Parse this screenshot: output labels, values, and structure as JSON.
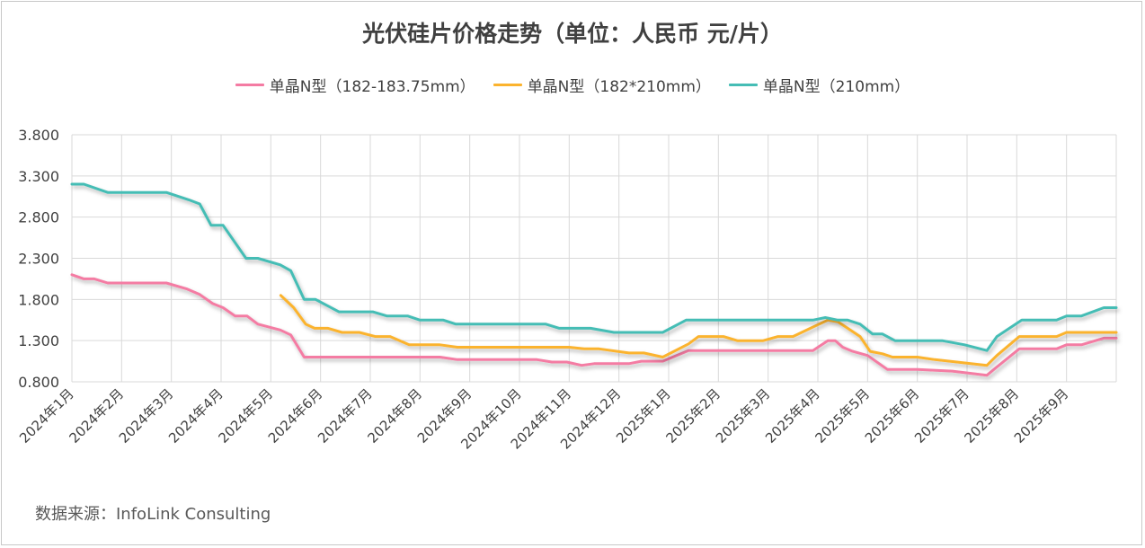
{
  "chart_data": {
    "type": "line",
    "title": "光伏硅片价格走势（单位：人民币 元/片）",
    "xlabel": "",
    "ylabel": "",
    "ylim": [
      0.8,
      3.8
    ],
    "yticks": [
      "0.800",
      "1.300",
      "1.800",
      "2.300",
      "2.800",
      "3.300",
      "3.800"
    ],
    "ytick_values": [
      0.8,
      1.3,
      1.8,
      2.3,
      2.8,
      3.3,
      3.8
    ],
    "xlim": [
      0,
      21
    ],
    "x_unit": "months since 2024年1月",
    "categories": [
      "2024年1月",
      "2024年2月",
      "2024年3月",
      "2024年4月",
      "2024年5月",
      "2024年6月",
      "2024年7月",
      "2024年8月",
      "2024年9月",
      "2024年10月",
      "2024年11月",
      "2024年12月",
      "2025年1月",
      "2025年2月",
      "2025年3月",
      "2025年4月",
      "2025年5月",
      "2025年6月",
      "2025年7月",
      "2025年8月",
      "2025年9月"
    ],
    "grid": true,
    "legend_position": "top-center",
    "series": [
      {
        "name": "单晶N型（182-183.75mm）",
        "color": "#f47ba3",
        "points": [
          [
            0,
            2.1
          ],
          [
            0.24,
            2.05
          ],
          [
            0.45,
            2.05
          ],
          [
            0.72,
            2.0
          ],
          [
            1.9,
            2.0
          ],
          [
            2.3,
            1.93
          ],
          [
            2.57,
            1.86
          ],
          [
            2.83,
            1.75
          ],
          [
            3.04,
            1.7
          ],
          [
            3.28,
            1.6
          ],
          [
            3.52,
            1.6
          ],
          [
            3.74,
            1.5
          ],
          [
            4.19,
            1.43
          ],
          [
            4.4,
            1.37
          ],
          [
            4.67,
            1.1
          ],
          [
            7.4,
            1.1
          ],
          [
            7.75,
            1.07
          ],
          [
            9.35,
            1.07
          ],
          [
            9.65,
            1.04
          ],
          [
            9.95,
            1.04
          ],
          [
            10.25,
            1.0
          ],
          [
            10.5,
            1.02
          ],
          [
            11.2,
            1.02
          ],
          [
            11.45,
            1.05
          ],
          [
            11.88,
            1.05
          ],
          [
            12.4,
            1.18
          ],
          [
            14.9,
            1.18
          ],
          [
            15.2,
            1.3
          ],
          [
            15.35,
            1.3
          ],
          [
            15.5,
            1.22
          ],
          [
            15.7,
            1.17
          ],
          [
            16.0,
            1.12
          ],
          [
            16.4,
            0.95
          ],
          [
            17.0,
            0.95
          ],
          [
            17.7,
            0.93
          ],
          [
            18.1,
            0.9
          ],
          [
            18.4,
            0.88
          ],
          [
            18.6,
            0.98
          ],
          [
            19.05,
            1.2
          ],
          [
            19.8,
            1.2
          ],
          [
            20.0,
            1.25
          ],
          [
            20.3,
            1.25
          ],
          [
            20.75,
            1.33
          ],
          [
            21.0,
            1.33
          ]
        ]
      },
      {
        "name": "单晶N型（182*210mm）",
        "color": "#fbb32e",
        "points": [
          [
            4.2,
            1.85
          ],
          [
            4.46,
            1.7
          ],
          [
            4.7,
            1.5
          ],
          [
            4.88,
            1.45
          ],
          [
            5.15,
            1.45
          ],
          [
            5.43,
            1.4
          ],
          [
            5.78,
            1.4
          ],
          [
            6.1,
            1.35
          ],
          [
            6.4,
            1.35
          ],
          [
            6.78,
            1.25
          ],
          [
            7.4,
            1.25
          ],
          [
            7.75,
            1.22
          ],
          [
            10.0,
            1.22
          ],
          [
            10.3,
            1.2
          ],
          [
            10.6,
            1.2
          ],
          [
            11.2,
            1.15
          ],
          [
            11.5,
            1.15
          ],
          [
            11.88,
            1.1
          ],
          [
            12.4,
            1.26
          ],
          [
            12.6,
            1.35
          ],
          [
            13.1,
            1.35
          ],
          [
            13.38,
            1.3
          ],
          [
            13.9,
            1.3
          ],
          [
            14.2,
            1.35
          ],
          [
            14.5,
            1.35
          ],
          [
            14.85,
            1.45
          ],
          [
            15.2,
            1.55
          ],
          [
            15.4,
            1.53
          ],
          [
            15.6,
            1.45
          ],
          [
            15.85,
            1.35
          ],
          [
            16.05,
            1.17
          ],
          [
            16.3,
            1.14
          ],
          [
            16.5,
            1.1
          ],
          [
            17.0,
            1.1
          ],
          [
            17.35,
            1.07
          ],
          [
            18.4,
            1.0
          ],
          [
            18.6,
            1.12
          ],
          [
            19.05,
            1.35
          ],
          [
            19.8,
            1.35
          ],
          [
            20.0,
            1.4
          ],
          [
            21.0,
            1.4
          ]
        ]
      },
      {
        "name": "单晶N型（210mm）",
        "color": "#45bdb5",
        "points": [
          [
            0,
            3.2
          ],
          [
            0.24,
            3.2
          ],
          [
            0.72,
            3.1
          ],
          [
            1.9,
            3.1
          ],
          [
            2.35,
            3.01
          ],
          [
            2.57,
            2.96
          ],
          [
            2.8,
            2.7
          ],
          [
            3.04,
            2.7
          ],
          [
            3.5,
            2.3
          ],
          [
            3.74,
            2.3
          ],
          [
            4.19,
            2.22
          ],
          [
            4.4,
            2.15
          ],
          [
            4.67,
            1.8
          ],
          [
            4.9,
            1.8
          ],
          [
            5.37,
            1.65
          ],
          [
            6.05,
            1.65
          ],
          [
            6.33,
            1.6
          ],
          [
            6.75,
            1.6
          ],
          [
            7.0,
            1.55
          ],
          [
            7.47,
            1.55
          ],
          [
            7.72,
            1.5
          ],
          [
            9.53,
            1.5
          ],
          [
            9.8,
            1.45
          ],
          [
            10.43,
            1.45
          ],
          [
            10.9,
            1.4
          ],
          [
            11.88,
            1.4
          ],
          [
            12.35,
            1.55
          ],
          [
            14.9,
            1.55
          ],
          [
            15.15,
            1.58
          ],
          [
            15.4,
            1.55
          ],
          [
            15.6,
            1.55
          ],
          [
            15.85,
            1.5
          ],
          [
            16.1,
            1.38
          ],
          [
            16.3,
            1.38
          ],
          [
            16.55,
            1.3
          ],
          [
            17.5,
            1.3
          ],
          [
            17.95,
            1.25
          ],
          [
            18.4,
            1.18
          ],
          [
            18.6,
            1.35
          ],
          [
            19.1,
            1.55
          ],
          [
            19.8,
            1.55
          ],
          [
            20.0,
            1.6
          ],
          [
            20.3,
            1.6
          ],
          [
            20.75,
            1.7
          ],
          [
            21.0,
            1.7
          ]
        ]
      }
    ],
    "source": "数据来源：InfoLink Consulting"
  }
}
